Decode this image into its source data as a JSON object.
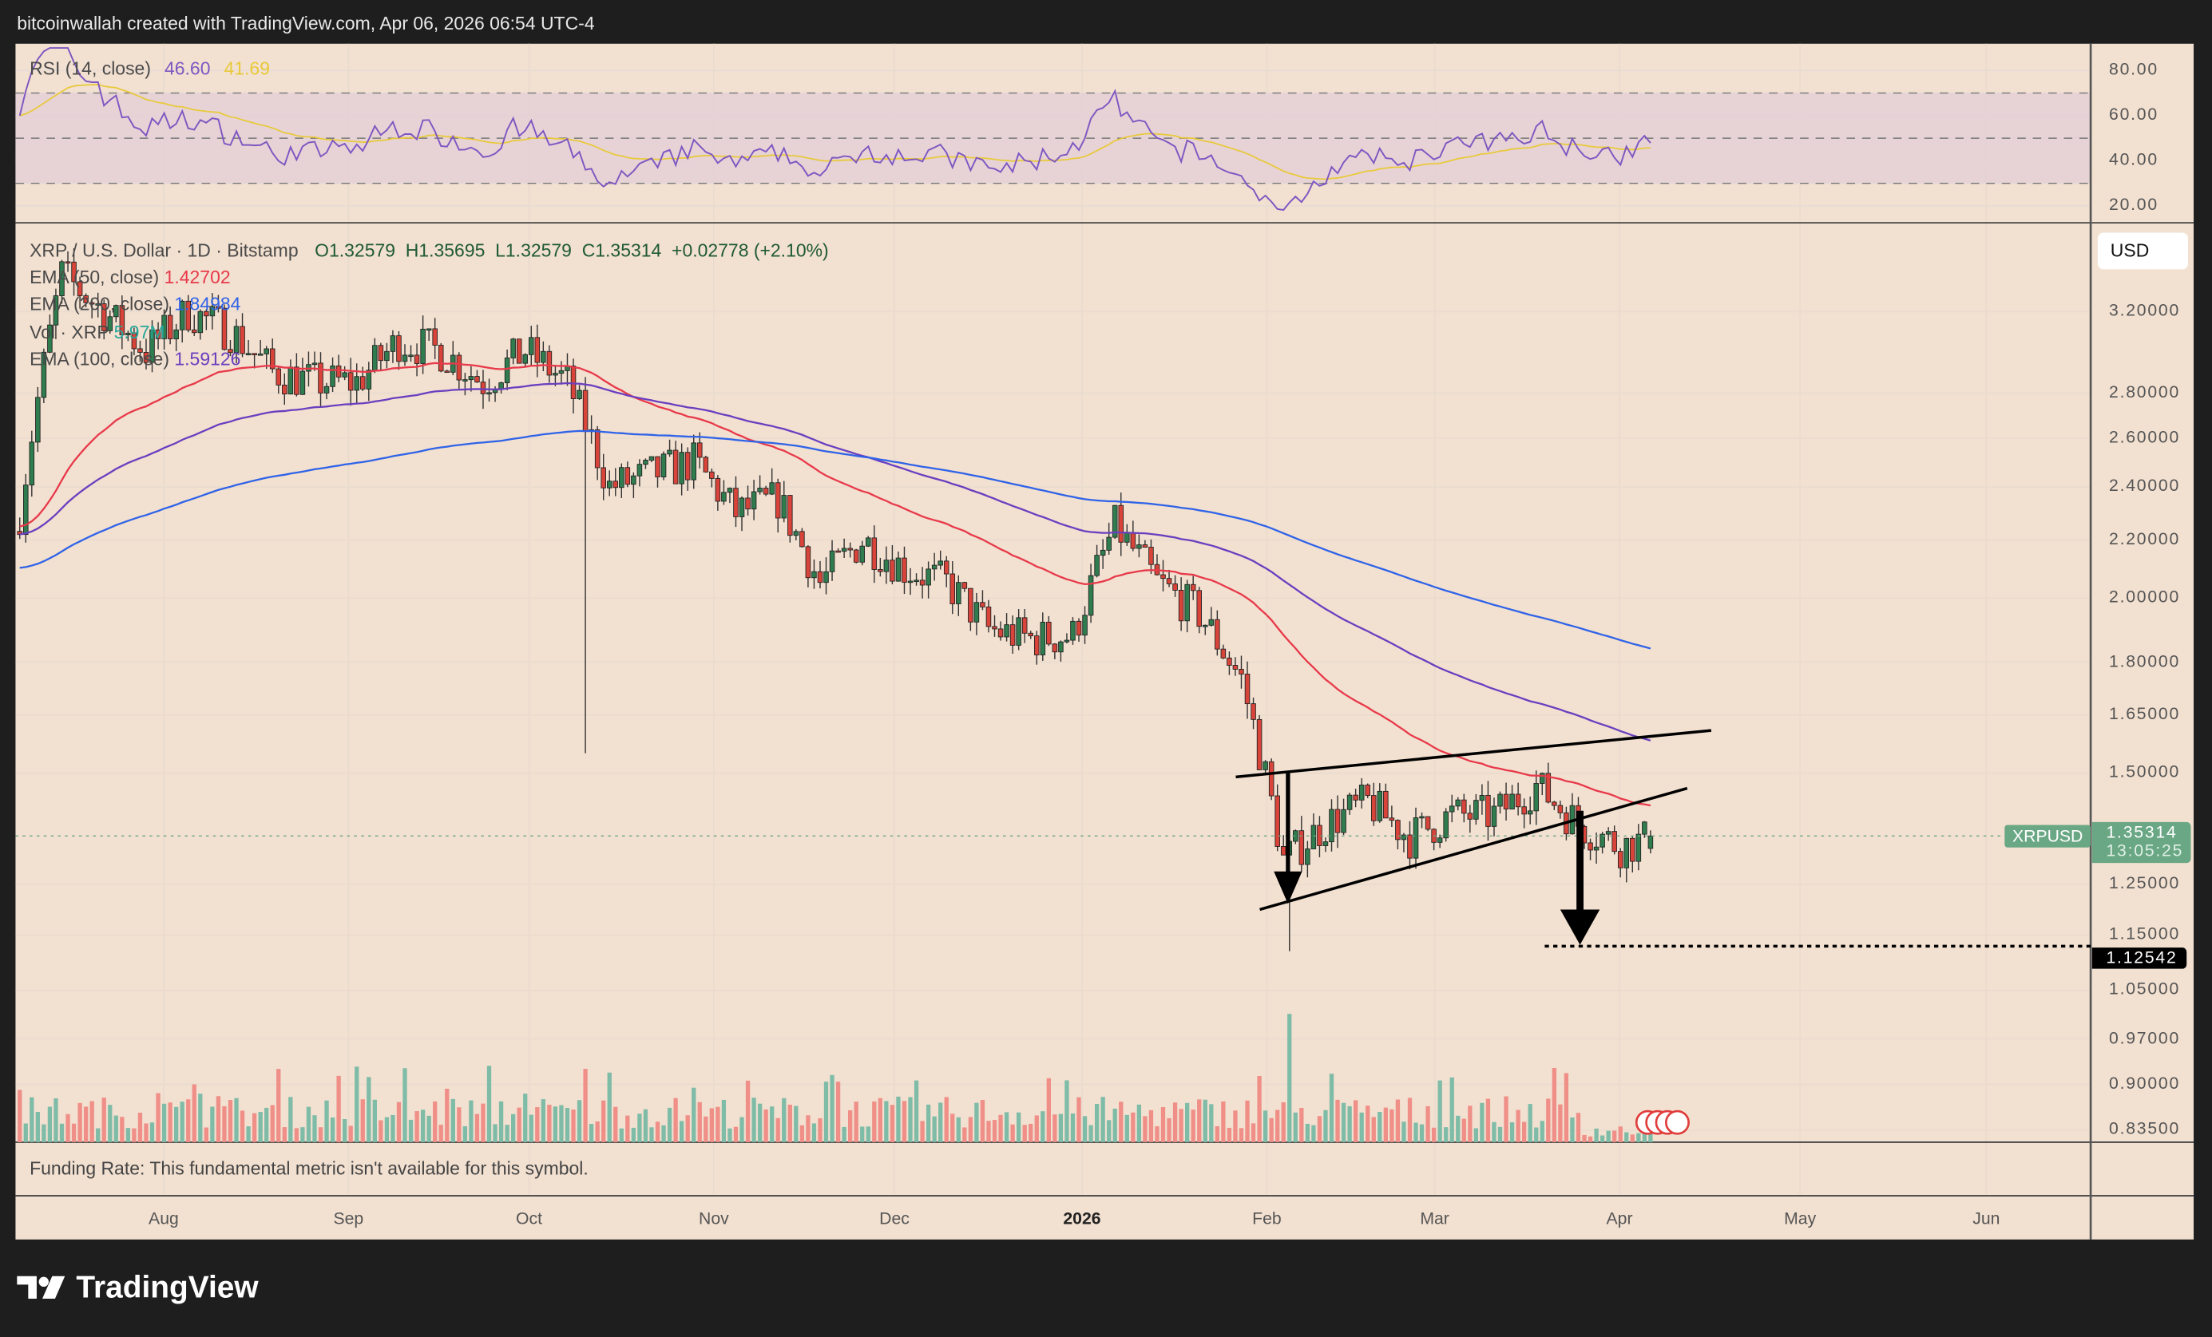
{
  "credit": "bitcoinwallah created with TradingView.com, Apr 06, 2026 06:54 UTC-4",
  "rsi": {
    "label": "RSI (14, close)",
    "value": "46.60",
    "ma_value": "41.69",
    "ticks": [
      "80.00",
      "60.00",
      "40.00",
      "20.00"
    ]
  },
  "legend": {
    "symbol": "XRP / U.S. Dollar · 1D · Bitstamp",
    "ohlc": "O1.32579  H1.35695  L1.32579  C1.35314  +0.02778 (+2.10%)",
    "ema50_label": "EMA (50, close)",
    "ema50_value": "1.42702",
    "ema200_label": "EMA (200, close)",
    "ema200_value": "1.84984",
    "vol_label": "Vol · XRP",
    "vol_value": "5.97M",
    "ema100_label": "EMA (100, close)",
    "ema100_value": "1.59126"
  },
  "currency_button": "USD",
  "price_ticks": [
    "3.20000",
    "2.80000",
    "2.60000",
    "2.40000",
    "2.20000",
    "2.00000",
    "1.80000",
    "1.65000",
    "1.50000",
    "1.25000",
    "1.15000",
    "1.05000",
    "0.97000",
    "0.90000",
    "0.83500"
  ],
  "last_price": {
    "symbol": "XRPUSD",
    "price": "1.35314",
    "countdown": "13:05:25"
  },
  "target_price": "1.12542",
  "funding": "Funding Rate: This fundamental metric isn't available for this symbol.",
  "months": [
    "Aug",
    "Sep",
    "Oct",
    "Nov",
    "Dec",
    "2026",
    "Feb",
    "Mar",
    "Apr",
    "May",
    "Jun"
  ],
  "brand": "TradingView",
  "colors": {
    "up": "#2f7d4f",
    "down": "#d9443a",
    "ema50": "#e8394a",
    "ema100": "#6a3fc0",
    "ema200": "#2f63e8",
    "rsi": "#7e57c2",
    "rsi_ma": "#e8c93a",
    "last": "#6aa784"
  },
  "chart_data": {
    "type": "candlestick",
    "title": "XRP / U.S. Dollar · 1D · Bitstamp",
    "scale": "log",
    "ylim": [
      0.835,
      3.6
    ],
    "weekly_close_start": "Jul 09",
    "weekly_closes": [
      2.3,
      3.4,
      3.2,
      3.0,
      3.2,
      3.1,
      2.9,
      2.85,
      2.85,
      3.05,
      3.0,
      2.85,
      3.0,
      2.85,
      2.4,
      2.45,
      2.5,
      2.3,
      2.35,
      2.05,
      2.2,
      2.1,
      2.05,
      1.9,
      1.87,
      1.88,
      2.25,
      2.05,
      1.95,
      1.75,
      1.3,
      1.38,
      1.43,
      1.35,
      1.4,
      1.4,
      1.47,
      1.38,
      1.33,
      1.353
    ],
    "notable_wicks": [
      {
        "date": "Oct 10",
        "low": 1.55
      },
      {
        "date": "Feb 05",
        "low": 1.12
      }
    ],
    "pattern": "rising wedge, breakdown target 1.12542"
  }
}
